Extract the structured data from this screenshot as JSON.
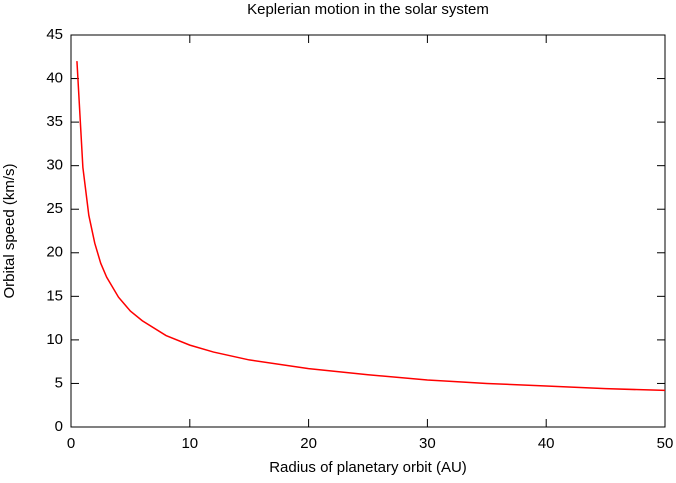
{
  "chart_data": {
    "type": "line",
    "title": "Keplerian motion in the solar system",
    "x_label": "Radius of planetary orbit (AU)",
    "y_label": "Orbital speed (km/s)",
    "x": [
      0.5,
      1,
      1.5,
      2,
      2.5,
      3,
      4,
      5,
      6,
      8,
      10,
      12,
      15,
      20,
      25,
      30,
      35,
      40,
      45,
      50
    ],
    "series": [
      {
        "name": "Orbital speed",
        "color": "#ff0000",
        "values": [
          42,
          29.8,
          24.3,
          21.1,
          18.8,
          17.2,
          14.9,
          13.3,
          12.2,
          10.5,
          9.4,
          8.6,
          7.7,
          6.7,
          6.0,
          5.4,
          5.0,
          4.7,
          4.4,
          4.2
        ]
      }
    ],
    "xlim": [
      0,
      50
    ],
    "xticks": [
      0,
      10,
      20,
      30,
      40,
      50
    ],
    "ylim": [
      0,
      45
    ],
    "yticks": [
      0,
      5,
      10,
      15,
      20,
      25,
      30,
      35,
      40,
      45
    ],
    "grid": false
  }
}
